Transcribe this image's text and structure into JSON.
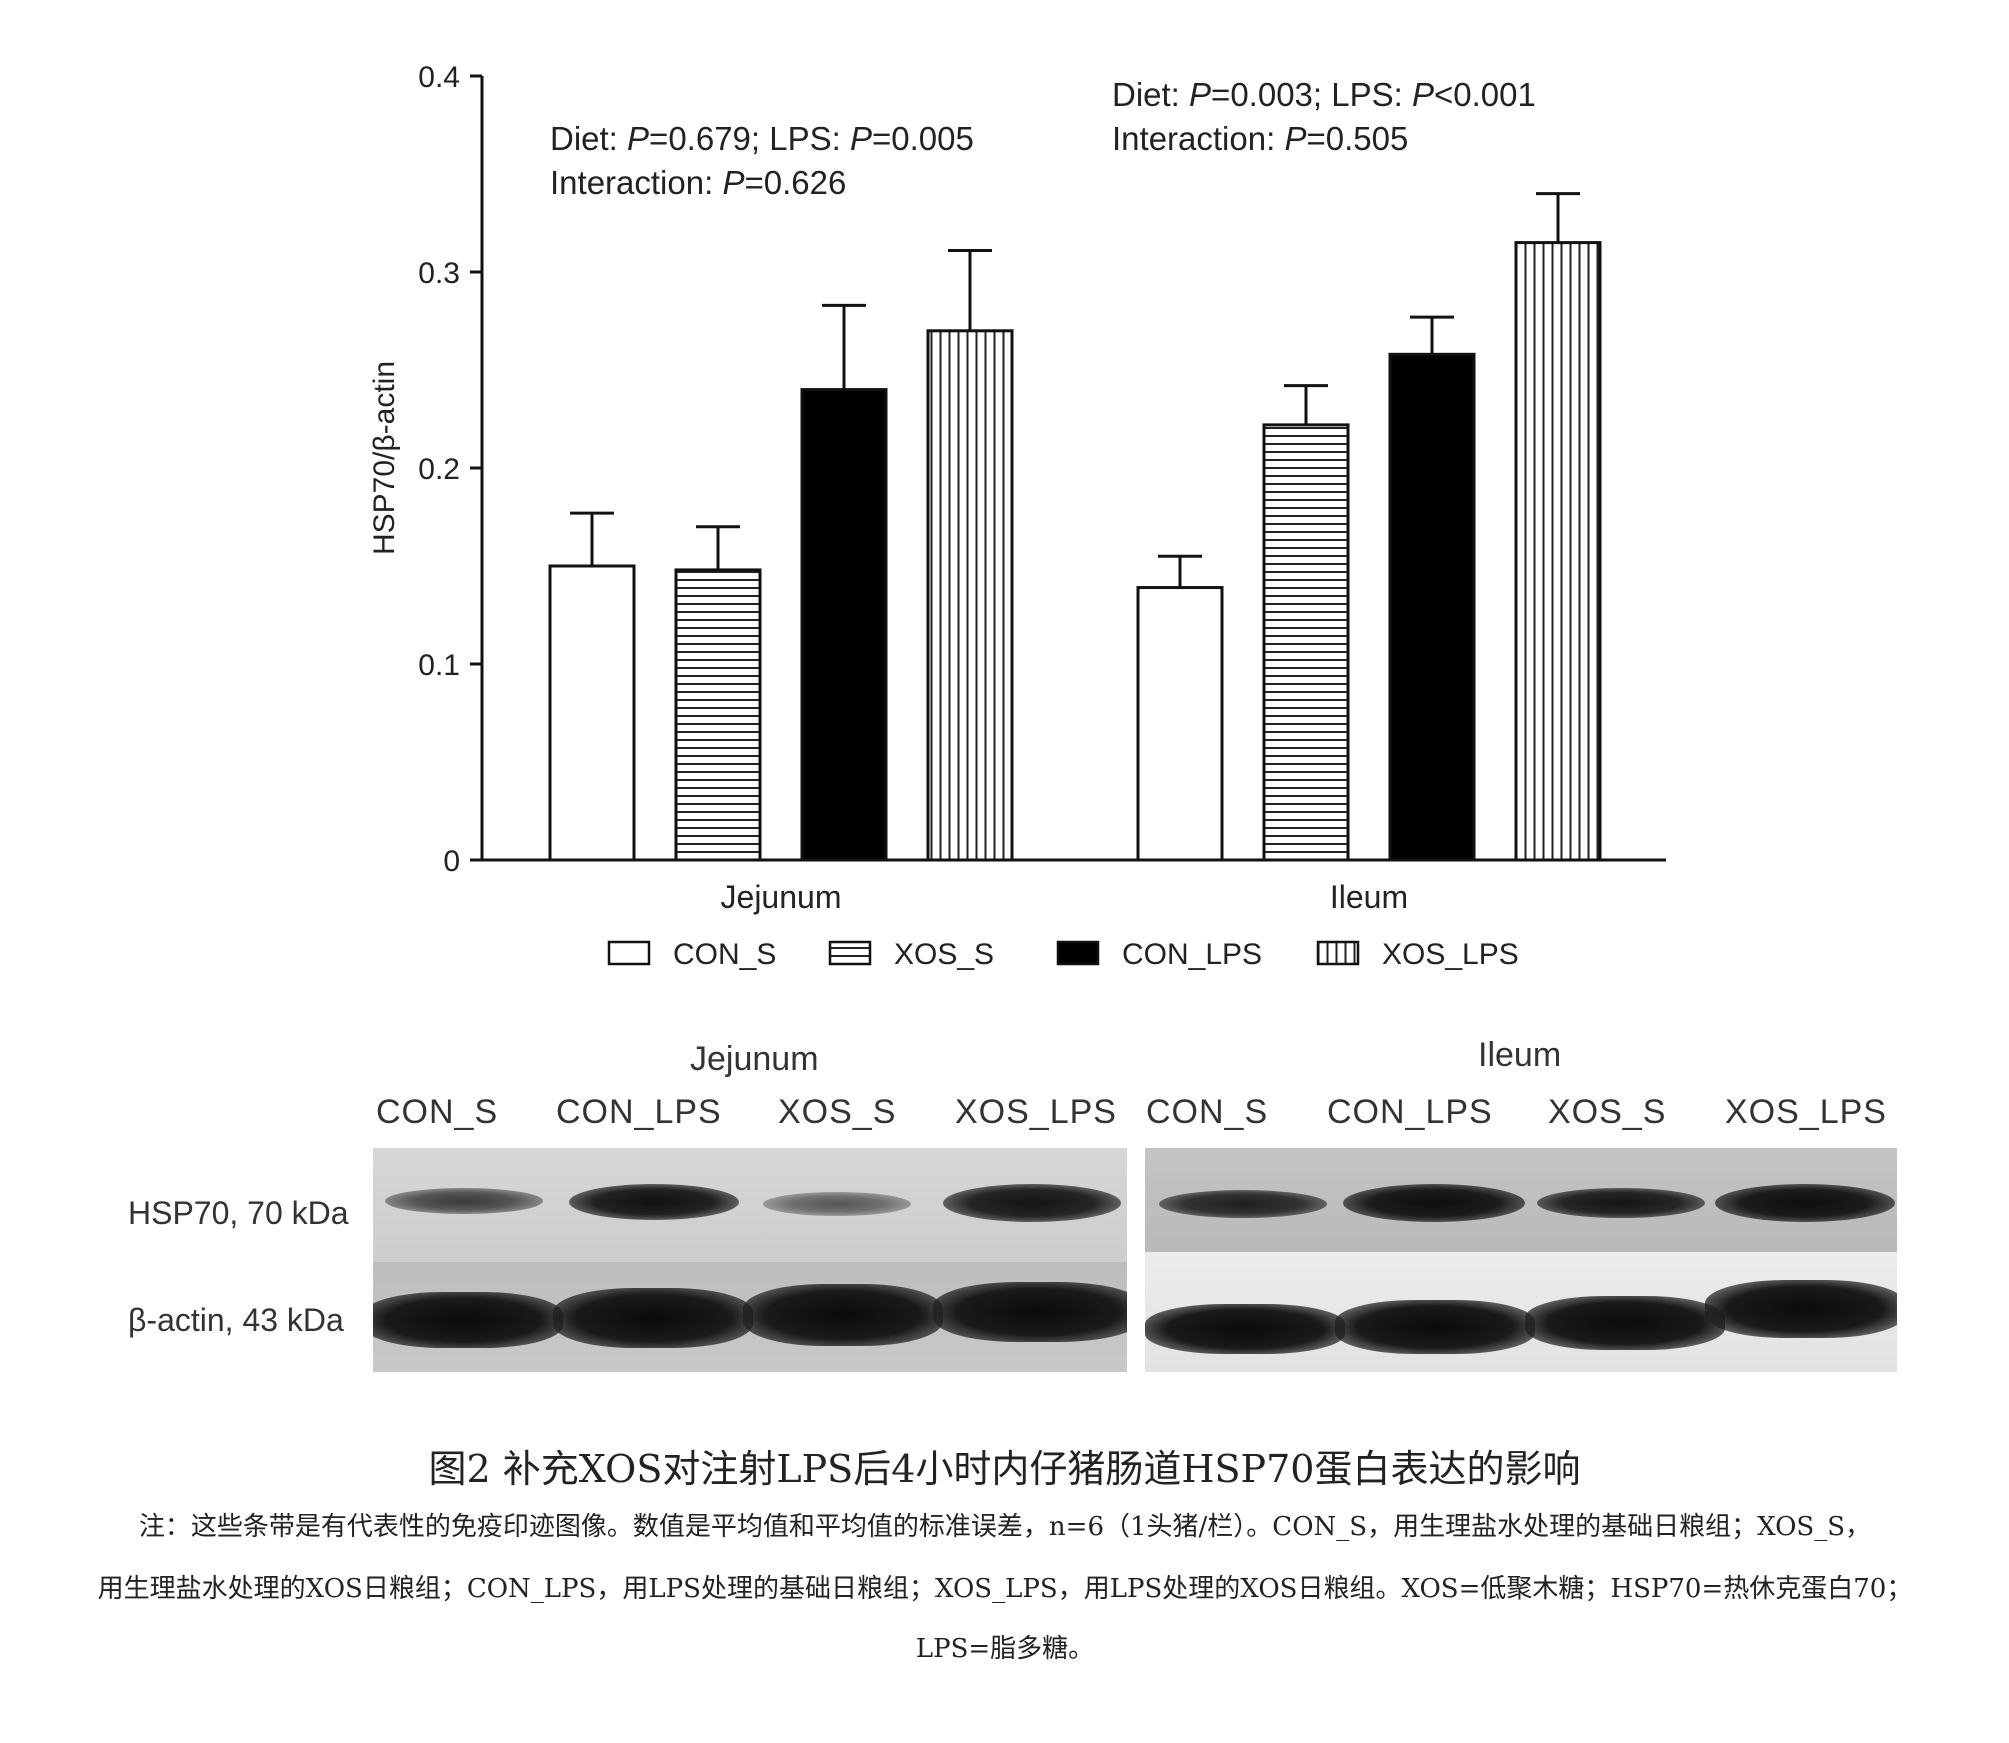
{
  "chart_data": {
    "type": "bar",
    "categories": [
      "Jejunum",
      "Ileum"
    ],
    "ylabel": "HSP70/β-actin",
    "ylim": [
      0,
      0.4
    ],
    "yticks": [
      "0",
      "0.1",
      "0.2",
      "0.3",
      "0.4"
    ],
    "legend_placement": "bottom",
    "series": [
      {
        "name": "CON_S",
        "fill": "white",
        "values": [
          0.15,
          0.139
        ],
        "errors": [
          0.027,
          0.016
        ]
      },
      {
        "name": "XOS_S",
        "fill": "horizontal",
        "values": [
          0.148,
          0.222
        ],
        "errors": [
          0.022,
          0.02
        ]
      },
      {
        "name": "CON_LPS",
        "fill": "black",
        "values": [
          0.24,
          0.258
        ],
        "errors": [
          0.043,
          0.019
        ]
      },
      {
        "name": "XOS_LPS",
        "fill": "vertical",
        "values": [
          0.27,
          0.315
        ],
        "errors": [
          0.041,
          0.025
        ]
      }
    ],
    "annotations": {
      "jejunum": {
        "line1": [
          "Diet: ",
          "P",
          "=0.679; LPS: ",
          "P",
          "=0.005"
        ],
        "line2": [
          "Interaction: ",
          "P",
          "=0.626"
        ]
      },
      "ileum": {
        "line1": [
          "Diet: ",
          "P",
          "=0.003; LPS: ",
          "P",
          "<0.001"
        ],
        "line2": [
          "Interaction: ",
          "P",
          "=0.505"
        ]
      }
    }
  },
  "blot": {
    "jejunum_title": "Jejunum",
    "ileum_title": "Ileum",
    "jejunum_lanes": [
      "CON_S",
      "CON_LPS",
      "XOS_S",
      "XOS_LPS"
    ],
    "ileum_lanes": [
      "CON_S",
      "CON_LPS",
      "XOS_S",
      "XOS_LPS"
    ],
    "row1_label": "HSP70, 70 kDa",
    "row2_label": "β-actin, 43 kDa"
  },
  "caption": {
    "title": "图2 补充XOS对注射LPS后4小时内仔猪肠道HSP70蛋白表达的影响",
    "note_line1": "注：这些条带是有代表性的免疫印迹图像。数值是平均值和平均值的标准误差，n=6（1头猪/栏）。CON_S，用生理盐水处理的基础日粮组；XOS_S，",
    "note_line2": "用生理盐水处理的XOS日粮组；CON_LPS，用LPS处理的基础日粮组；XOS_LPS，用LPS处理的XOS日粮组。XOS=低聚木糖；HSP70=热休克蛋白70；",
    "note_line3": "LPS=脂多糖。"
  }
}
